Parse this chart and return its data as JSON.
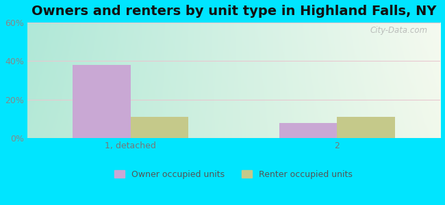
{
  "title": "Owners and renters by unit type in Highland Falls, NY",
  "categories": [
    "1, detached",
    "2"
  ],
  "owner_values": [
    38.0,
    8.0
  ],
  "renter_values": [
    11.0,
    11.0
  ],
  "owner_color": "#c9a8d4",
  "renter_color": "#c5c98a",
  "ylim": [
    0,
    60
  ],
  "yticks": [
    0,
    20,
    40,
    60
  ],
  "ytick_labels": [
    "0%",
    "20%",
    "40%",
    "60%"
  ],
  "background_outer": "#00e5ff",
  "legend_owner": "Owner occupied units",
  "legend_renter": "Renter occupied units",
  "title_fontsize": 14,
  "tick_fontsize": 9,
  "legend_fontsize": 9,
  "bar_width": 0.28,
  "watermark": "City-Data.com",
  "grad_left": "#b0e8d8",
  "grad_right": "#f5faf0",
  "grid_color": "#e8c8d0"
}
